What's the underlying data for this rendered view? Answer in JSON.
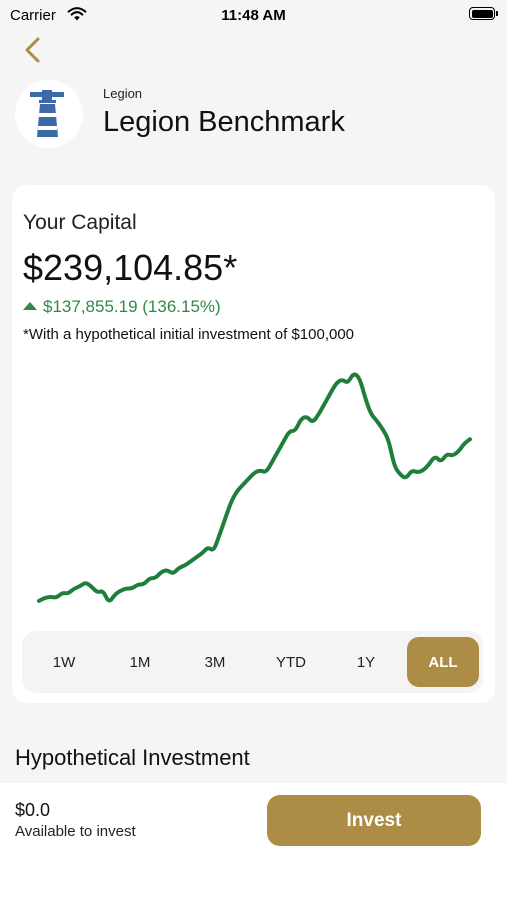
{
  "status_bar": {
    "carrier": "Carrier",
    "time": "11:48 AM"
  },
  "header": {
    "back_icon": "chevron-left-icon",
    "logo_icon": "lighthouse-icon",
    "provider": "Legion",
    "title": "Legion Benchmark"
  },
  "capital": {
    "label": "Your Capital",
    "value": "$239,104.85*",
    "change": "$137,855.19 (136.15%)",
    "note": "*With a hypothetical initial investment of $100,000"
  },
  "chart_data": {
    "type": "line",
    "title": "",
    "xlabel": "",
    "ylabel": "",
    "grid": false,
    "color": "#1f7f3a",
    "series": [
      {
        "values": [
          100,
          101.5,
          102,
          101.5,
          104,
          103.5,
          106,
          107,
          109,
          107,
          104,
          105,
          99,
          103,
          105,
          106,
          106,
          108,
          108,
          111,
          111,
          114,
          115,
          113,
          116,
          117,
          119,
          121,
          123,
          126,
          124,
          132,
          140,
          148,
          153,
          156,
          159,
          162,
          163,
          162,
          167,
          172,
          177,
          182,
          182,
          188,
          189,
          186,
          190,
          195,
          200,
          205,
          207,
          205,
          210,
          208,
          198,
          190,
          187,
          183,
          178,
          165,
          161,
          159,
          163,
          162,
          163,
          166,
          170,
          167,
          171,
          170,
          172,
          176,
          178
        ]
      }
    ]
  },
  "ranges": {
    "items": [
      "1W",
      "1M",
      "3M",
      "YTD",
      "1Y",
      "ALL"
    ],
    "active": "ALL"
  },
  "section": {
    "title": "Hypothetical Investment"
  },
  "footer": {
    "balance": "$0.0",
    "balance_label": "Available to invest",
    "invest_label": "Invest"
  },
  "colors": {
    "accent": "#ad8c45",
    "positive": "#2f8a45",
    "line": "#1f7f3a"
  }
}
